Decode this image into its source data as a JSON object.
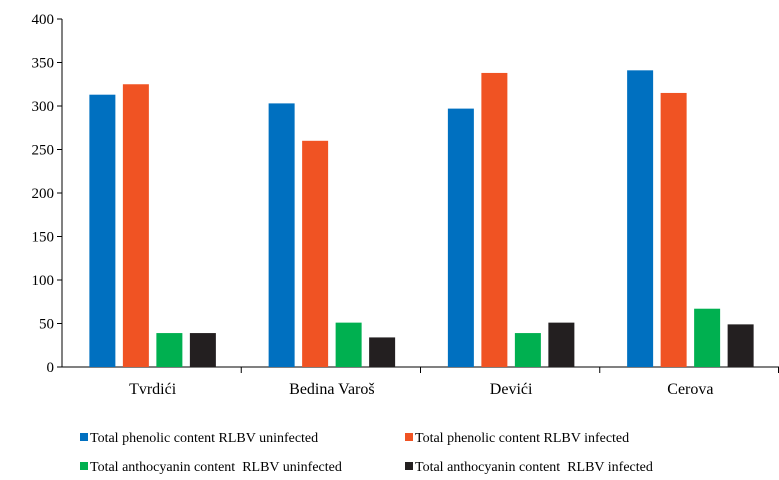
{
  "chart_data": {
    "type": "bar",
    "categories": [
      "Tvrdići",
      "Bedina Varoš",
      "Devići",
      "Cerova"
    ],
    "series": [
      {
        "name": "Total phenolic content RLBV uninfected",
        "color": "#0070C0",
        "values": [
          313,
          303,
          297,
          341
        ]
      },
      {
        "name": "Total phenolic content RLBV infected",
        "color": "#F05323",
        "values": [
          325,
          260,
          338,
          315
        ]
      },
      {
        "name": "Total anthocyanin content  RLBV uninfected",
        "color": "#00B050",
        "values": [
          39,
          51,
          39,
          67
        ]
      },
      {
        "name": "Total anthocyanin content  RLBV infected",
        "color": "#231F20",
        "values": [
          39,
          34,
          51,
          49
        ]
      }
    ],
    "ylim": [
      0,
      400
    ],
    "yticks": [
      0,
      50,
      100,
      150,
      200,
      250,
      300,
      350,
      400
    ],
    "grid": false,
    "legend_position": "bottom"
  }
}
